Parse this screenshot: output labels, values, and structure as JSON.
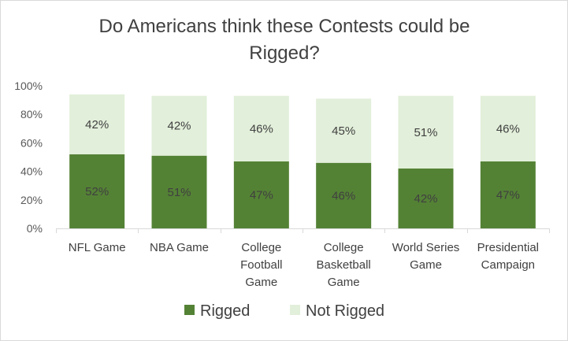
{
  "chart_data": {
    "type": "bar",
    "stacked": true,
    "title": "Do Americans think these Contests could be Rigged?",
    "title_lines": [
      "Do Americans think these Contests could be",
      "Rigged?"
    ],
    "categories": [
      "NFL Game",
      "NBA Game",
      "College Football Game",
      "College Basketball Game",
      "World Series Game",
      "Presidential Campaign"
    ],
    "category_lines": [
      [
        "NFL Game"
      ],
      [
        "NBA Game"
      ],
      [
        "College",
        "Football",
        "Game"
      ],
      [
        "College",
        "Basketball",
        "Game"
      ],
      [
        "World Series",
        "Game"
      ],
      [
        "Presidential",
        "Campaign"
      ]
    ],
    "series": [
      {
        "name": "Rigged",
        "values": [
          52,
          51,
          47,
          46,
          42,
          47
        ],
        "color": "#548235"
      },
      {
        "name": "Not Rigged",
        "values": [
          42,
          42,
          46,
          45,
          51,
          46
        ],
        "color": "#e2efda"
      }
    ],
    "ylim": [
      0,
      100
    ],
    "yticks": [
      0,
      20,
      40,
      60,
      80,
      100
    ],
    "ytick_labels": [
      "0%",
      "20%",
      "40%",
      "60%",
      "80%",
      "100%"
    ],
    "value_suffix": "%",
    "legend_position": "bottom",
    "grid": false,
    "xlabel": "",
    "ylabel": ""
  }
}
